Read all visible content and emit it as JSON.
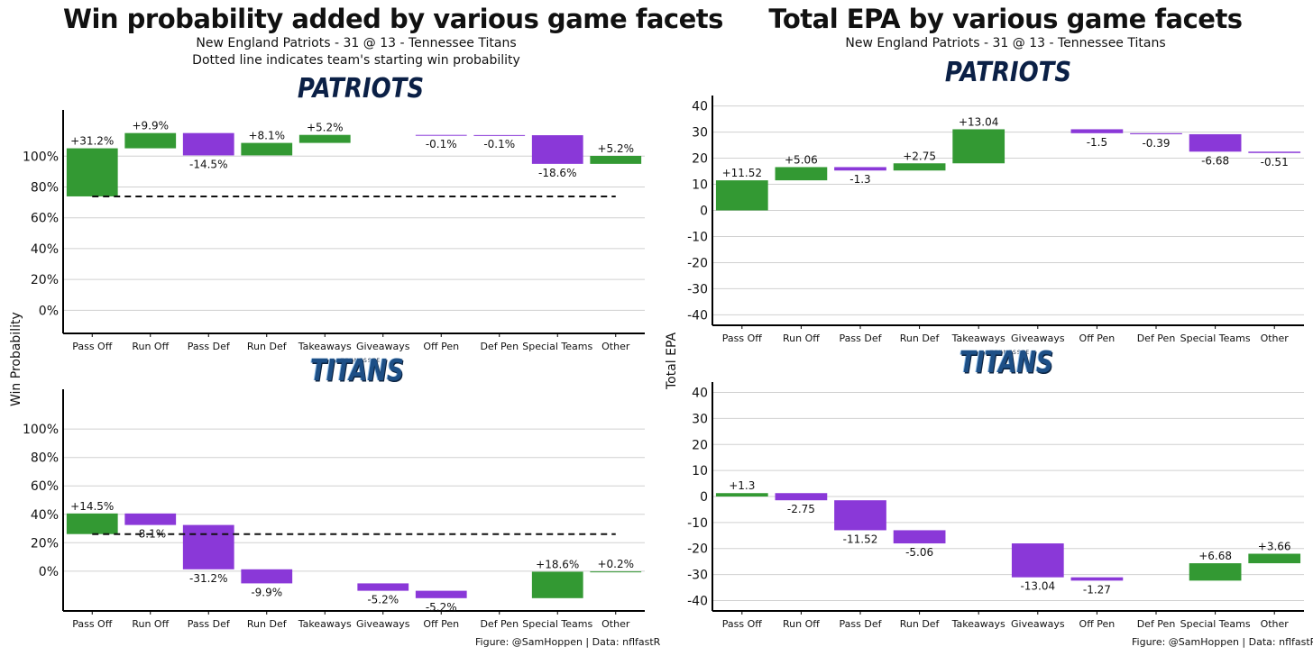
{
  "left": {
    "title": "Win probability added by various game facets",
    "subtitle1": "New England Patriots - 31 @ 13 - Tennessee Titans",
    "subtitle2": "Dotted line indicates team's starting win probability",
    "ylabel": "Win Probability"
  },
  "right": {
    "title": "Total EPA by various game facets",
    "subtitle1": "New England Patriots - 31 @ 13 - Tennessee Titans",
    "ylabel": "Total EPA"
  },
  "logos": {
    "patriots": "PATRIOTS",
    "titans": "TITANS",
    "titans_small": "TENNESSEE"
  },
  "caption": "Figure: @SamHoppen | Data: nflfastR",
  "colors": {
    "positive": "#339933",
    "negative": "#8a38d8",
    "grid": "#d0d0d0"
  },
  "chart_data": [
    {
      "id": "wp-patriots",
      "type": "bar",
      "team": "PATRIOTS",
      "categories": [
        "Pass Off",
        "Run Off",
        "Pass Def",
        "Run Def",
        "Takeaways",
        "Giveaways",
        "Off Pen",
        "Def Pen",
        "Special Teams",
        "Other"
      ],
      "bars": [
        [
          73.9,
          105.1
        ],
        [
          105.1,
          115.0
        ],
        [
          115.0,
          100.5
        ],
        [
          100.5,
          108.6
        ],
        [
          108.6,
          113.8
        ],
        null,
        [
          113.8,
          113.7
        ],
        [
          113.7,
          113.6
        ],
        [
          113.6,
          95.0
        ],
        [
          95.0,
          100.2
        ]
      ],
      "labels": [
        "+31.2%",
        "+9.9%",
        "-14.5%",
        "+8.1%",
        "+5.2%",
        "",
        "-0.1%",
        "-0.1%",
        "-18.6%",
        "+5.2%"
      ],
      "baseline": 73.9,
      "yticks": [
        0,
        20,
        40,
        60,
        80,
        100
      ],
      "tick_suffix": "%",
      "ylim": [
        -15,
        130
      ]
    },
    {
      "id": "wp-titans",
      "type": "bar",
      "team": "TITANS",
      "categories": [
        "Pass Off",
        "Run Off",
        "Pass Def",
        "Run Def",
        "Takeaways",
        "Giveaways",
        "Off Pen",
        "Def Pen",
        "Special Teams",
        "Other"
      ],
      "bars": [
        [
          26.1,
          40.6
        ],
        [
          40.6,
          32.5
        ],
        [
          32.5,
          1.3
        ],
        [
          1.3,
          -8.6
        ],
        null,
        [
          -8.6,
          -13.8
        ],
        [
          -13.8,
          -19.0
        ],
        null,
        [
          -19.0,
          -0.4
        ],
        [
          -0.4,
          -0.2
        ]
      ],
      "labels": [
        "+14.5%",
        "-8.1%",
        "-31.2%",
        "-9.9%",
        "",
        "-5.2%",
        "-5.2%",
        "",
        "+18.6%",
        "+0.2%"
      ],
      "baseline": 26.1,
      "yticks": [
        0,
        20,
        40,
        60,
        80,
        100
      ],
      "tick_suffix": "%",
      "ylim": [
        -28,
        128
      ]
    },
    {
      "id": "epa-patriots",
      "type": "bar",
      "team": "PATRIOTS",
      "categories": [
        "Pass Off",
        "Run Off",
        "Pass Def",
        "Run Def",
        "Takeaways",
        "Giveaways",
        "Off Pen",
        "Def Pen",
        "Special Teams",
        "Other"
      ],
      "bars": [
        [
          0,
          11.52
        ],
        [
          11.52,
          16.58
        ],
        [
          16.58,
          15.28
        ],
        [
          15.28,
          18.03
        ],
        [
          18.03,
          31.07
        ],
        null,
        [
          31.07,
          29.57
        ],
        [
          29.57,
          29.18
        ],
        [
          29.18,
          22.5
        ],
        [
          22.5,
          21.99
        ]
      ],
      "labels": [
        "+11.52",
        "+5.06",
        "-1.3",
        "+2.75",
        "+13.04",
        "",
        "-1.5",
        "-0.39",
        "-6.68",
        "-0.51"
      ],
      "yticks": [
        -40,
        -30,
        -20,
        -10,
        0,
        10,
        20,
        30,
        40
      ],
      "tick_suffix": "",
      "ylim": [
        -44,
        44
      ]
    },
    {
      "id": "epa-titans",
      "type": "bar",
      "team": "TITANS",
      "categories": [
        "Pass Off",
        "Run Off",
        "Pass Def",
        "Run Def",
        "Takeaways",
        "Giveaways",
        "Off Pen",
        "Def Pen",
        "Special Teams",
        "Other"
      ],
      "bars": [
        [
          0,
          1.3
        ],
        [
          1.3,
          -1.45
        ],
        [
          -1.45,
          -12.97
        ],
        [
          -12.97,
          -18.03
        ],
        null,
        [
          -18.03,
          -31.07
        ],
        [
          -31.07,
          -32.34
        ],
        null,
        [
          -32.34,
          -25.66
        ],
        [
          -25.66,
          -22.0
        ]
      ],
      "labels": [
        "+1.3",
        "-2.75",
        "-11.52",
        "-5.06",
        "",
        "-13.04",
        "-1.27",
        "",
        "+6.68",
        "+3.66"
      ],
      "yticks": [
        -40,
        -30,
        -20,
        -10,
        0,
        10,
        20,
        30,
        40
      ],
      "tick_suffix": "",
      "ylim": [
        -44,
        44
      ]
    }
  ]
}
